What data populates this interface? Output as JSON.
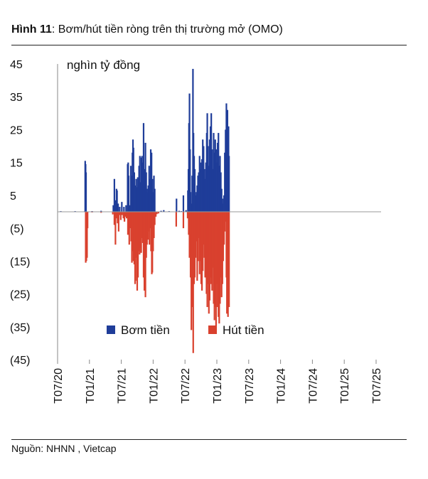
{
  "title": {
    "prefix": "Hình 11",
    "text": ": Bơm/hút tiền ròng trên thị trường mở (OMO)"
  },
  "source": "Nguồn:  NHNN , Vietcap",
  "chart_data": {
    "type": "bar",
    "title": "Bơm/hút tiền ròng trên thị trường mở (OMO)",
    "unit_label": "nghìn tỷ đồng",
    "ylim": [
      -45,
      45
    ],
    "y_ticks": [
      {
        "value": 45,
        "label": "45"
      },
      {
        "value": 35,
        "label": "35"
      },
      {
        "value": 25,
        "label": "25"
      },
      {
        "value": 15,
        "label": "15"
      },
      {
        "value": 5,
        "label": "5"
      },
      {
        "value": -5,
        "label": "(5)"
      },
      {
        "value": -15,
        "label": "(15)"
      },
      {
        "value": -25,
        "label": "(25)"
      },
      {
        "value": -35,
        "label": "(35)"
      },
      {
        "value": -45,
        "label": "(45)"
      }
    ],
    "x_ticks": [
      "T07/20",
      "T01/21",
      "T07/21",
      "T01/22",
      "T07/22",
      "T01/23",
      "T07/23",
      "T01/24",
      "T07/24",
      "T01/25",
      "T07/25"
    ],
    "legend": [
      {
        "name": "Bơm tiền",
        "color": "#1f3d99"
      },
      {
        "name": "Hút tiền",
        "color": "#d9412e"
      }
    ],
    "series": [
      {
        "name": "Bơm tiền",
        "color": "#1f3d99",
        "points": [
          [
            0.6,
            0.2
          ],
          [
            3.3,
            0.2
          ],
          [
            5.15,
            0.2
          ],
          [
            5.2,
            15.5
          ],
          [
            5.28,
            14.5
          ],
          [
            5.36,
            12.0
          ],
          [
            6.5,
            0.2
          ],
          [
            8.2,
            0.3
          ],
          [
            10.5,
            2.0
          ],
          [
            10.7,
            10.0
          ],
          [
            10.85,
            3.5
          ],
          [
            11.1,
            7.0
          ],
          [
            11.2,
            6.5
          ],
          [
            11.4,
            2.5
          ],
          [
            11.7,
            1.5
          ],
          [
            12.1,
            3.0
          ],
          [
            12.5,
            1.5
          ],
          [
            12.9,
            2.0
          ],
          [
            13.2,
            14.5
          ],
          [
            13.3,
            15.0
          ],
          [
            13.4,
            11.0
          ],
          [
            13.6,
            2.0
          ],
          [
            13.8,
            14.0
          ],
          [
            13.9,
            11.0
          ],
          [
            14.1,
            18.0
          ],
          [
            14.2,
            22.0
          ],
          [
            14.3,
            19.5
          ],
          [
            14.45,
            12.0
          ],
          [
            14.6,
            8.0
          ],
          [
            14.8,
            10.0
          ],
          [
            14.95,
            7.5
          ],
          [
            15.1,
            10.5
          ],
          [
            15.2,
            8.0
          ],
          [
            15.35,
            14.0
          ],
          [
            15.5,
            17.0
          ],
          [
            15.65,
            9.0
          ],
          [
            15.8,
            16.5
          ],
          [
            15.9,
            17.0
          ],
          [
            16.05,
            15.0
          ],
          [
            16.2,
            27.0
          ],
          [
            16.3,
            13.0
          ],
          [
            16.4,
            12.0
          ],
          [
            16.55,
            21.0
          ],
          [
            16.7,
            12.0
          ],
          [
            16.85,
            7.0
          ],
          [
            16.95,
            6.0
          ],
          [
            17.1,
            8.0
          ],
          [
            17.25,
            14.0
          ],
          [
            17.4,
            10.0
          ],
          [
            17.55,
            19.0
          ],
          [
            17.7,
            18.0
          ],
          [
            17.85,
            10.0
          ],
          [
            18.0,
            6.0
          ],
          [
            18.15,
            11.0
          ],
          [
            18.3,
            7.0
          ],
          [
            19.5,
            0.3
          ],
          [
            20.0,
            0.5
          ],
          [
            21.0,
            0.2
          ],
          [
            22.4,
            4.0
          ],
          [
            22.9,
            0.3
          ],
          [
            23.3,
            0.2
          ],
          [
            23.7,
            5.0
          ],
          [
            24.2,
            0.5
          ],
          [
            24.55,
            6.5
          ],
          [
            24.65,
            13.0
          ],
          [
            24.75,
            27.0
          ],
          [
            24.85,
            36.0
          ],
          [
            24.95,
            19.0
          ],
          [
            25.05,
            6.0
          ],
          [
            25.2,
            2.5
          ],
          [
            25.35,
            11.0
          ],
          [
            25.5,
            43.5
          ],
          [
            25.6,
            24.0
          ],
          [
            25.72,
            17.0
          ],
          [
            25.85,
            13.0
          ],
          [
            26.0,
            5.0
          ],
          [
            26.15,
            6.0
          ],
          [
            26.3,
            8.0
          ],
          [
            26.45,
            11.0
          ],
          [
            26.6,
            12.0
          ],
          [
            26.75,
            17.0
          ],
          [
            26.9,
            15.0
          ],
          [
            27.05,
            13.0
          ],
          [
            27.2,
            16.0
          ],
          [
            27.35,
            22.0
          ],
          [
            27.5,
            20.0
          ],
          [
            27.65,
            13.0
          ],
          [
            27.8,
            10.0
          ],
          [
            27.95,
            15.0
          ],
          [
            28.1,
            24.0
          ],
          [
            28.2,
            30.0
          ],
          [
            28.35,
            20.0
          ],
          [
            28.5,
            14.0
          ],
          [
            28.65,
            22.0
          ],
          [
            28.8,
            26.0
          ],
          [
            28.95,
            30.0
          ],
          [
            29.1,
            19.0
          ],
          [
            29.25,
            13.0
          ],
          [
            29.4,
            24.0
          ],
          [
            29.55,
            18.0
          ],
          [
            29.7,
            22.0
          ],
          [
            29.85,
            19.0
          ],
          [
            30.0,
            15.0
          ],
          [
            30.15,
            21.0
          ],
          [
            30.3,
            24.0
          ],
          [
            30.45,
            14.0
          ],
          [
            30.6,
            17.0
          ],
          [
            30.75,
            12.0
          ],
          [
            30.9,
            7.0
          ],
          [
            31.05,
            4.0
          ],
          [
            31.2,
            2.5
          ],
          [
            31.35,
            5.0
          ],
          [
            31.5,
            18.0
          ],
          [
            31.65,
            25.0
          ],
          [
            31.8,
            33.0
          ],
          [
            31.9,
            27.0
          ],
          [
            32.0,
            31.0
          ],
          [
            32.1,
            17.0
          ],
          [
            32.2,
            26.0
          ],
          [
            32.3,
            17.0
          ]
        ]
      },
      {
        "name": "Hút tiền",
        "color": "#d9412e",
        "points": [
          [
            5.3,
            -15.5
          ],
          [
            5.42,
            -15.0
          ],
          [
            5.55,
            -14.0
          ],
          [
            5.65,
            -5.0
          ],
          [
            6.5,
            -0.2
          ],
          [
            8.2,
            -0.3
          ],
          [
            10.4,
            -0.8
          ],
          [
            10.7,
            -4.0
          ],
          [
            10.9,
            -10.0
          ],
          [
            11.05,
            -2.0
          ],
          [
            11.3,
            -3.5
          ],
          [
            11.5,
            -6.0
          ],
          [
            11.7,
            -1.0
          ],
          [
            11.9,
            -2.5
          ],
          [
            12.1,
            -1.0
          ],
          [
            12.4,
            -2.0
          ],
          [
            12.6,
            -3.0
          ],
          [
            12.8,
            -1.5
          ],
          [
            13.0,
            -2.0
          ],
          [
            13.25,
            -7.0
          ],
          [
            13.5,
            -10.0
          ],
          [
            13.7,
            -5.0
          ],
          [
            13.85,
            -9.0
          ],
          [
            14.0,
            -15.5
          ],
          [
            14.15,
            -12.0
          ],
          [
            14.3,
            -15.0
          ],
          [
            14.45,
            -16.0
          ],
          [
            14.6,
            -22.0
          ],
          [
            14.75,
            -14.0
          ],
          [
            14.9,
            -21.0
          ],
          [
            15.0,
            -24.0
          ],
          [
            15.15,
            -20.0
          ],
          [
            15.3,
            -12.0
          ],
          [
            15.45,
            -13.0
          ],
          [
            15.6,
            -11.0
          ],
          [
            15.75,
            -12.5
          ],
          [
            15.9,
            -8.0
          ],
          [
            16.05,
            -9.5
          ],
          [
            16.2,
            -20.0
          ],
          [
            16.35,
            -24.0
          ],
          [
            16.45,
            -23.5
          ],
          [
            16.55,
            -26.0
          ],
          [
            16.7,
            -14.0
          ],
          [
            16.85,
            -10.0
          ],
          [
            17.0,
            -8.5
          ],
          [
            17.15,
            -6.0
          ],
          [
            17.3,
            -10.0
          ],
          [
            17.45,
            -5.0
          ],
          [
            17.6,
            -12.0
          ],
          [
            17.75,
            -19.0
          ],
          [
            17.85,
            -18.5
          ],
          [
            18.0,
            -12.0
          ],
          [
            18.15,
            -8.0
          ],
          [
            18.3,
            -4.0
          ],
          [
            18.5,
            -1.5
          ],
          [
            18.7,
            -0.7
          ],
          [
            19.0,
            -0.5
          ],
          [
            22.35,
            -4.5
          ],
          [
            23.7,
            -5.0
          ],
          [
            24.5,
            -2.0
          ],
          [
            24.7,
            -7.0
          ],
          [
            24.85,
            -14.0
          ],
          [
            24.95,
            -12.0
          ],
          [
            25.05,
            -20.0
          ],
          [
            25.2,
            -36.0
          ],
          [
            25.3,
            -29.0
          ],
          [
            25.42,
            -13.0
          ],
          [
            25.55,
            -43.0
          ],
          [
            25.7,
            -22.0
          ],
          [
            25.85,
            -20.0
          ],
          [
            26.0,
            -14.0
          ],
          [
            26.15,
            -9.0
          ],
          [
            26.3,
            -21.0
          ],
          [
            26.45,
            -15.0
          ],
          [
            26.6,
            -8.0
          ],
          [
            26.75,
            -19.0
          ],
          [
            26.9,
            -15.0
          ],
          [
            27.05,
            -22.0
          ],
          [
            27.2,
            -24.0
          ],
          [
            27.35,
            -18.0
          ],
          [
            27.5,
            -10.0
          ],
          [
            27.65,
            -14.0
          ],
          [
            27.8,
            -20.0
          ],
          [
            27.95,
            -17.0
          ],
          [
            28.05,
            -25.0
          ],
          [
            28.2,
            -29.0
          ],
          [
            28.35,
            -22.0
          ],
          [
            28.5,
            -31.0
          ],
          [
            28.65,
            -27.0
          ],
          [
            28.8,
            -20.0
          ],
          [
            28.95,
            -22.0
          ],
          [
            29.1,
            -24.0
          ],
          [
            29.25,
            -17.0
          ],
          [
            29.4,
            -28.0
          ],
          [
            29.55,
            -33.0
          ],
          [
            29.7,
            -29.0
          ],
          [
            29.85,
            -35.0
          ],
          [
            30.0,
            -22.0
          ],
          [
            30.15,
            -29.0
          ],
          [
            30.3,
            -32.0
          ],
          [
            30.45,
            -34.0
          ],
          [
            30.6,
            -28.0
          ],
          [
            30.75,
            -20.0
          ],
          [
            30.9,
            -26.0
          ],
          [
            31.05,
            -22.0
          ],
          [
            31.2,
            -15.0
          ],
          [
            31.35,
            -10.0
          ],
          [
            31.5,
            -6.0
          ],
          [
            31.65,
            -3.0
          ],
          [
            31.8,
            -20.0
          ],
          [
            31.9,
            -31.0
          ],
          [
            32.0,
            -29.0
          ],
          [
            32.1,
            -32.0
          ],
          [
            32.2,
            -28.0
          ],
          [
            32.3,
            -29.0
          ]
        ]
      }
    ]
  }
}
